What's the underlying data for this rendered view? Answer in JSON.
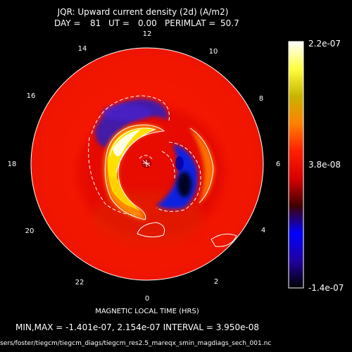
{
  "chart_data": {
    "type": "heatmap",
    "projection": "polar",
    "title": "JQR: Upward current density (2d) (A/m2)",
    "subtitle": {
      "day_label": "DAY =",
      "day": "81",
      "ut_label": "UT =",
      "ut": "0.00",
      "perimlat_label": "PERIMLAT =",
      "perimlat": "50.7"
    },
    "xlabel": "MAGNETIC LOCAL TIME (HRS)",
    "mlt_tick_labels": [
      "12",
      "10",
      "8",
      "6",
      "4",
      "2",
      "0",
      "22",
      "20",
      "18",
      "16",
      "14"
    ],
    "colorbar": {
      "max_label": "2.2e-07",
      "mid_label": "3.8e-08",
      "min_label": "-1.4e-07",
      "vmin": -1.4e-07,
      "vmax": 2.2e-07,
      "colors": [
        "#ffffff",
        "#ffff40",
        "#c8b400",
        "#ff8000",
        "#ff2000",
        "#d80000",
        "#400000",
        "#0000ff",
        "#2000a0",
        "#000000"
      ]
    },
    "min_value": -1.401e-07,
    "max_value": 2.154e-07,
    "contour_interval": 3.95e-08,
    "background_level": 3.8e-08,
    "features": [
      {
        "name": "upward-current-peak",
        "mlt_hours": 16.0,
        "colatitude_deg": 18,
        "value": 2.154e-07
      },
      {
        "name": "downward-current-peak",
        "mlt_hours": 4.5,
        "colatitude_deg": 13,
        "value": -1.401e-07
      },
      {
        "name": "downward-current-band",
        "mlt_hours": 12.8,
        "colatitude_deg": 21,
        "value": -4e-08
      },
      {
        "name": "upward-current-band-east",
        "mlt_hours": 7.5,
        "colatitude_deg": 23,
        "value": 1.4e-07
      }
    ]
  },
  "footer": {
    "minmax_text": "MIN,MAX = -1.401e-07, 2.154e-07 INTERVAL =  3.950e-08",
    "file_path": "sers/foster/tiegcm/tiegcm_diags/tiegcm_res2.5_mareqx_smin_magdiags_sech_001.nc"
  }
}
